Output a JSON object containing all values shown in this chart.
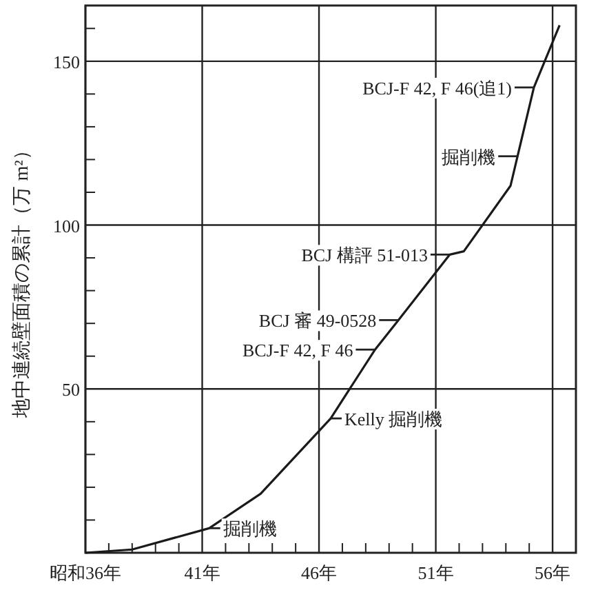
{
  "chart_data": {
    "type": "line",
    "ylabel": "地中連続壁面積の累計（万 m²）",
    "x": [
      36,
      38,
      41.3,
      43.5,
      46.5,
      48.4,
      49.4,
      51.6,
      52.2,
      54.2,
      55.2,
      56.3
    ],
    "series": [
      {
        "color": "#1a1a1a",
        "values": [
          0,
          1,
          7.5,
          18,
          41,
          62,
          71,
          91,
          92,
          112,
          142,
          161
        ]
      }
    ],
    "xlim": [
      36,
      57
    ],
    "ylim": [
      0,
      167
    ],
    "xticks": [
      {
        "value": 36,
        "label": "昭和36年"
      },
      {
        "value": 37,
        "label": null
      },
      {
        "value": 38,
        "label": null
      },
      {
        "value": 39,
        "label": null
      },
      {
        "value": 40,
        "label": null
      },
      {
        "value": 41,
        "label": "41年"
      },
      {
        "value": 42,
        "label": null
      },
      {
        "value": 43,
        "label": null
      },
      {
        "value": 44,
        "label": null
      },
      {
        "value": 45,
        "label": null
      },
      {
        "value": 46,
        "label": "46年"
      },
      {
        "value": 47,
        "label": null
      },
      {
        "value": 48,
        "label": null
      },
      {
        "value": 49,
        "label": null
      },
      {
        "value": 50,
        "label": null
      },
      {
        "value": 51,
        "label": "51年"
      },
      {
        "value": 52,
        "label": null
      },
      {
        "value": 53,
        "label": null
      },
      {
        "value": 54,
        "label": null
      },
      {
        "value": 55,
        "label": null
      },
      {
        "value": 56,
        "label": "56年"
      }
    ],
    "yticks": [
      {
        "value": 10,
        "label": null
      },
      {
        "value": 20,
        "label": null
      },
      {
        "value": 30,
        "label": null
      },
      {
        "value": 40,
        "label": null
      },
      50,
      {
        "value": 60,
        "label": null
      },
      {
        "value": 70,
        "label": null
      },
      {
        "value": 80,
        "label": null
      },
      {
        "value": 90,
        "label": null
      },
      100,
      {
        "value": 110,
        "label": null
      },
      {
        "value": 120,
        "label": null
      },
      {
        "value": 130,
        "label": null
      },
      {
        "value": 140,
        "label": null
      },
      150,
      {
        "value": 160,
        "label": null
      }
    ],
    "grid": true,
    "marker": "none",
    "line_style": "solid",
    "annotations": [
      {
        "text": "掘削機",
        "x": 41.3,
        "y": 7.5
      },
      {
        "text": "Kelly 掘削機",
        "x": 46.5,
        "y": 41
      },
      {
        "text": "BCJ-F 42, F 46",
        "x": 48.4,
        "y": 62
      },
      {
        "text": "BCJ 審 49-0528",
        "x": 49.4,
        "y": 71
      },
      {
        "text": "BCJ 構評 51-013",
        "x": 51.6,
        "y": 91
      },
      {
        "text": "掘削機",
        "x": 54.5,
        "y": 121
      },
      {
        "text": "BCJ-F 42, F 46(追1)",
        "x": 55.2,
        "y": 142
      }
    ]
  }
}
